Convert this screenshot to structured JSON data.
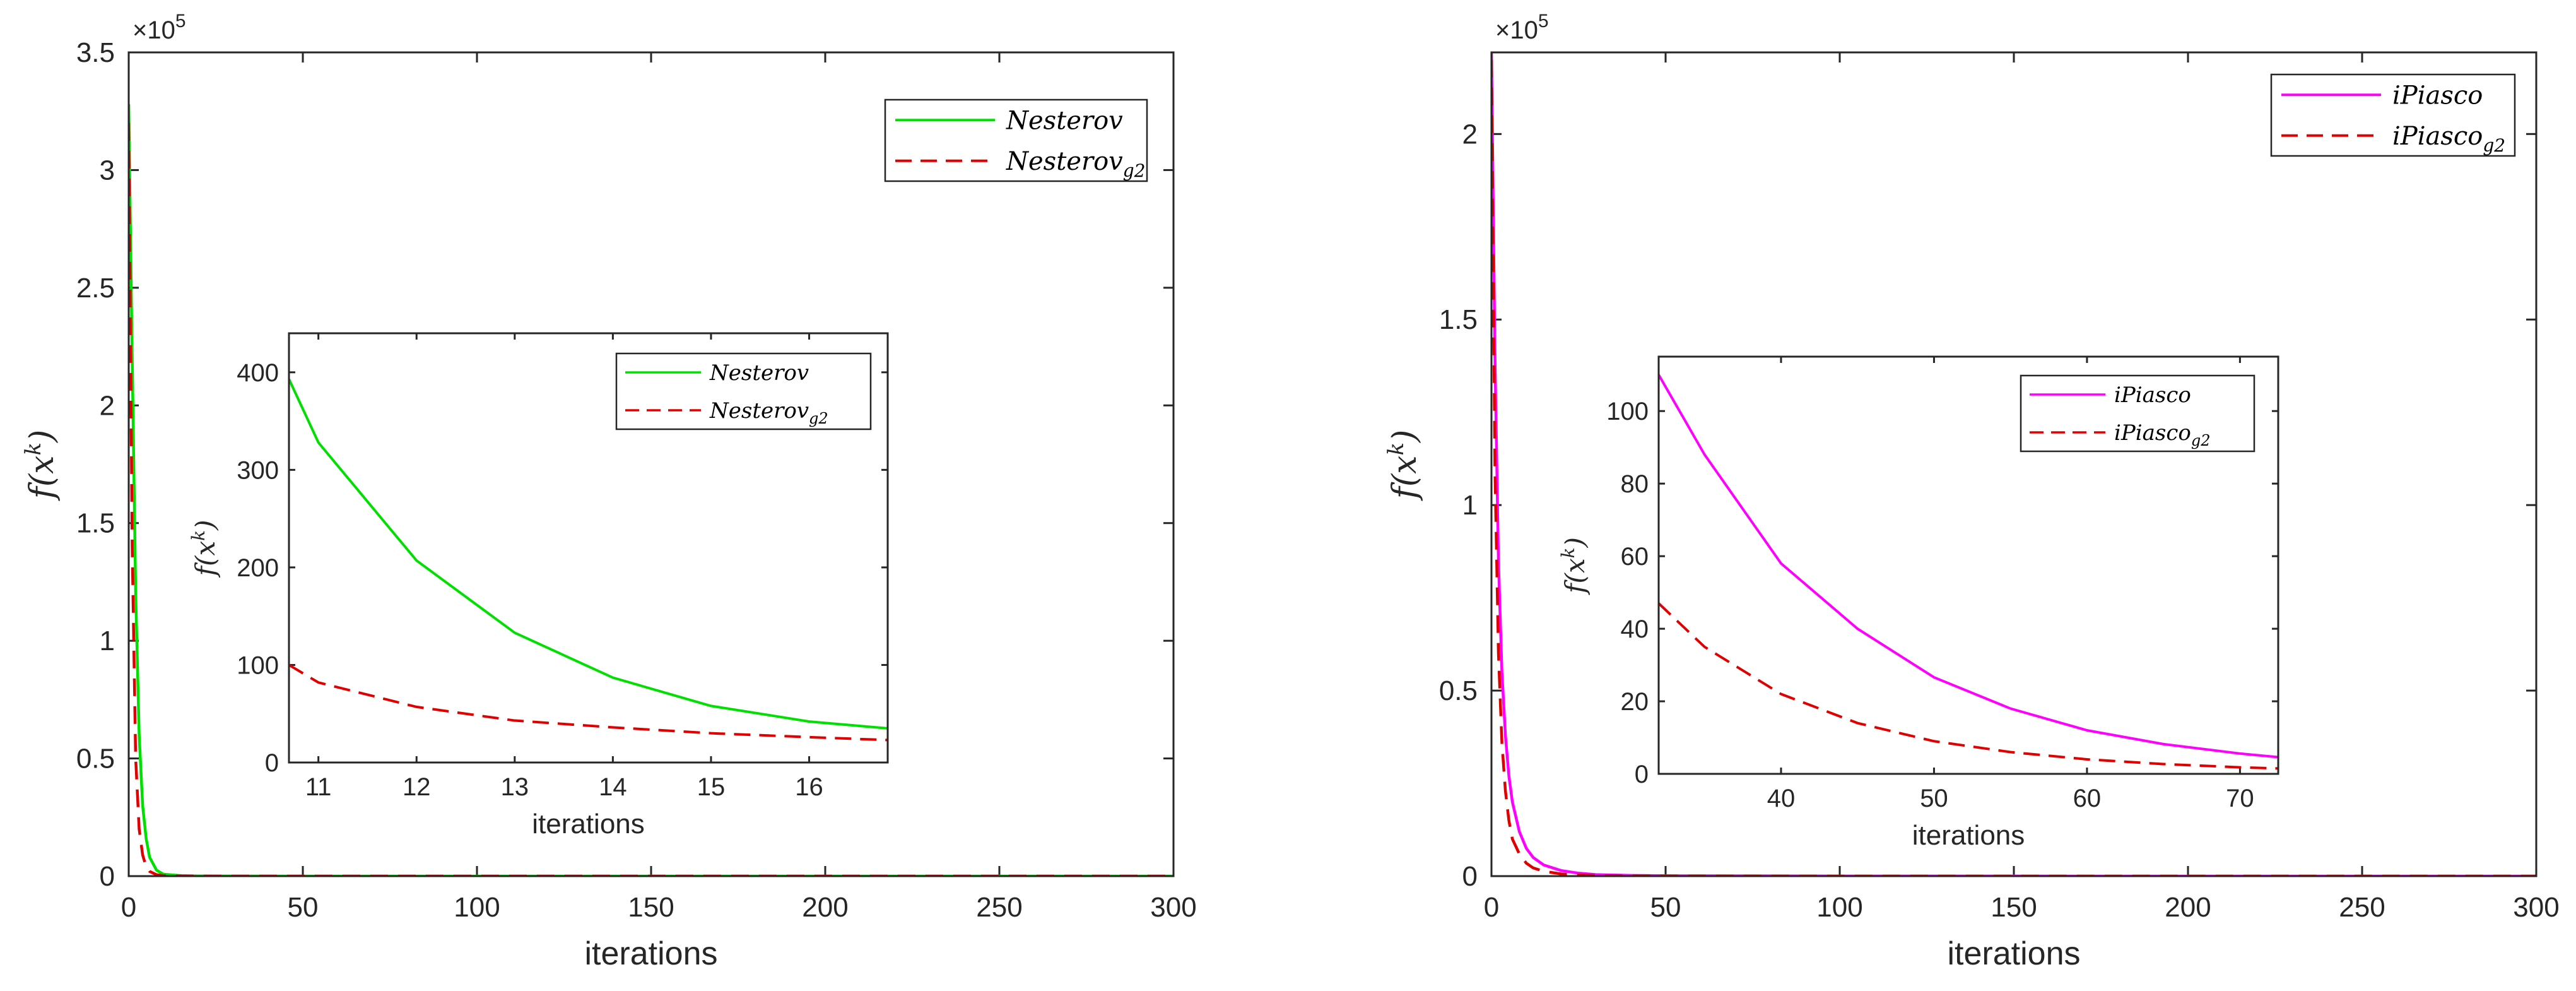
{
  "chart_data": [
    {
      "type": "line",
      "xlabel": "iterations",
      "ylabel": "f(x",
      "ylabel_sup": "k",
      "ylabel_close": ")",
      "exponent_label": "×10",
      "exponent_power": "5",
      "xlim": [
        0,
        300
      ],
      "ylim": [
        0,
        3.5
      ],
      "xticks": [
        0,
        50,
        100,
        150,
        200,
        250,
        300
      ],
      "xtick_labels": [
        "0",
        "50",
        "100",
        "150",
        "200",
        "250",
        "300"
      ],
      "yticks": [
        0,
        0.5,
        1,
        1.5,
        2,
        2.5,
        3,
        3.5
      ],
      "ytick_labels": [
        "0",
        "0.5",
        "1",
        "1.5",
        "2",
        "2.5",
        "3",
        "3.5"
      ],
      "legend_position": "top-right",
      "series": [
        {
          "name": "Nesterov",
          "legend_base": "Nesterov",
          "legend_sub": "",
          "color": "#00e000",
          "style": "solid",
          "x": [
            0,
            1,
            2,
            3,
            4,
            5,
            6,
            8,
            10,
            15,
            20,
            50,
            100,
            200,
            300
          ],
          "y": [
            3.28,
            2.2,
            1.2,
            0.6,
            0.3,
            0.16,
            0.08,
            0.025,
            0.008,
            0.002,
            0.0008,
            0,
            0,
            0,
            0
          ]
        },
        {
          "name": "Nesterov_g2",
          "legend_base": "Nesterov",
          "legend_sub": "g2",
          "color": "#e00000",
          "style": "dashed",
          "x": [
            0,
            1,
            2,
            3,
            4,
            5,
            6,
            8,
            10,
            15,
            20,
            50,
            100,
            200,
            300
          ],
          "y": [
            3.2,
            1.4,
            0.5,
            0.2,
            0.09,
            0.04,
            0.02,
            0.006,
            0.002,
            0.0005,
            0.0002,
            0,
            0,
            0,
            0
          ]
        }
      ],
      "inset": {
        "xlabel": "iterations",
        "ylabel": "f(x",
        "ylabel_sup": "k",
        "ylabel_close": ")",
        "xlim": [
          10.7,
          16.8
        ],
        "ylim": [
          0,
          440
        ],
        "xticks": [
          11,
          12,
          13,
          14,
          15,
          16
        ],
        "xtick_labels": [
          "11",
          "12",
          "13",
          "14",
          "15",
          "16"
        ],
        "yticks": [
          0,
          100,
          200,
          300,
          400
        ],
        "ytick_labels": [
          "0",
          "100",
          "200",
          "300",
          "400"
        ],
        "legend_position": "top-right",
        "series": [
          {
            "name": "Nesterov",
            "legend_base": "Nesterov",
            "legend_sub": "",
            "color": "#00e000",
            "style": "solid",
            "x": [
              10.7,
              11,
              12,
              13,
              14,
              15,
              16,
              16.8
            ],
            "y": [
              393,
              328,
              207,
              133,
              87,
              58,
              42,
              35
            ]
          },
          {
            "name": "Nesterov_g2",
            "legend_base": "Nesterov",
            "legend_sub": "g2",
            "color": "#e00000",
            "style": "dashed",
            "x": [
              10.7,
              11,
              12,
              13,
              14,
              15,
              16,
              16.8
            ],
            "y": [
              100,
              82,
              57,
              43,
              36,
              30,
              26,
              23
            ]
          }
        ]
      }
    },
    {
      "type": "line",
      "xlabel": "iterations",
      "ylabel": "f(x",
      "ylabel_sup": "k",
      "ylabel_close": ")",
      "exponent_label": "×10",
      "exponent_power": "5",
      "xlim": [
        0,
        300
      ],
      "ylim": [
        0,
        2.22
      ],
      "xticks": [
        0,
        50,
        100,
        150,
        200,
        250,
        300
      ],
      "xtick_labels": [
        "0",
        "50",
        "100",
        "150",
        "200",
        "250",
        "300"
      ],
      "yticks": [
        0,
        0.5,
        1,
        1.5,
        2
      ],
      "ytick_labels": [
        "0",
        "0.5",
        "1",
        "1.5",
        "2"
      ],
      "legend_position": "top-right",
      "series": [
        {
          "name": "iPiasco",
          "legend_base": "iPiasco",
          "legend_sub": "",
          "color": "#ff00ff",
          "style": "solid",
          "x": [
            0,
            1,
            2,
            3,
            4,
            5,
            6,
            8,
            10,
            12,
            15,
            20,
            25,
            30,
            40,
            50,
            100,
            200,
            300
          ],
          "y": [
            2.22,
            1.4,
            0.85,
            0.55,
            0.38,
            0.27,
            0.2,
            0.12,
            0.075,
            0.05,
            0.03,
            0.015,
            0.008,
            0.004,
            0.002,
            0.001,
            0.0002,
            0,
            0
          ]
        },
        {
          "name": "iPiasco_g2",
          "legend_base": "iPiasco",
          "legend_sub": "g2",
          "color": "#e00000",
          "style": "dashed",
          "x": [
            0,
            1,
            2,
            3,
            4,
            5,
            6,
            8,
            10,
            12,
            15,
            20,
            25,
            30,
            40,
            50,
            100,
            200,
            300
          ],
          "y": [
            2.2,
            1.1,
            0.6,
            0.36,
            0.23,
            0.15,
            0.1,
            0.06,
            0.035,
            0.022,
            0.013,
            0.006,
            0.003,
            0.0015,
            0.0007,
            0.0004,
            0.0001,
            0,
            0
          ]
        }
      ],
      "inset": {
        "xlabel": "iterations",
        "ylabel": "f(x",
        "ylabel_sup": "k",
        "ylabel_close": ")",
        "xlim": [
          32,
          72.5
        ],
        "ylim": [
          0,
          115
        ],
        "xticks": [
          40,
          50,
          60,
          70
        ],
        "xtick_labels": [
          "40",
          "50",
          "60",
          "70"
        ],
        "yticks": [
          0,
          20,
          40,
          60,
          80,
          100
        ],
        "ytick_labels": [
          "0",
          "20",
          "40",
          "60",
          "80",
          "100"
        ],
        "legend_position": "top-right",
        "series": [
          {
            "name": "iPiasco",
            "legend_base": "iPiasco",
            "legend_sub": "",
            "color": "#ff00ff",
            "style": "solid",
            "x": [
              32,
              35,
              40,
              45,
              50,
              55,
              60,
              65,
              70,
              72.5
            ],
            "y": [
              110,
              88,
              58,
              40,
              26.6,
              18,
              12,
              8.2,
              5.6,
              4.6
            ]
          },
          {
            "name": "iPiasco_g2",
            "legend_base": "iPiasco",
            "legend_sub": "g2",
            "color": "#e00000",
            "style": "dashed",
            "x": [
              32,
              35,
              40,
              45,
              50,
              55,
              60,
              65,
              70,
              72.5
            ],
            "y": [
              47,
              35,
              22,
              14,
              9,
              6,
              4,
              2.7,
              1.8,
              1.5
            ]
          }
        ]
      }
    }
  ]
}
